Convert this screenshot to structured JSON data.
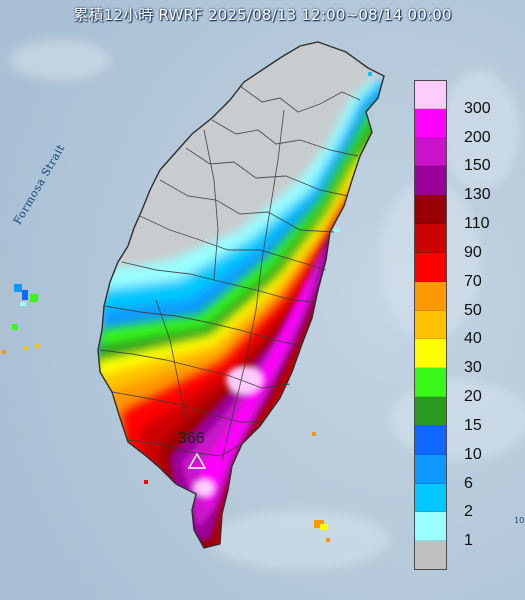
{
  "title": "累積12小時 RWRF 2025/08/13 12:00~08/14 00:00",
  "strait_label": "Formosa Strait",
  "peak_value": "366",
  "edge_mark": "10",
  "colors": {
    "sea": "#b3c7d9",
    "land": "#c9ccce",
    "border": "#3a3a3a"
  },
  "legend": {
    "levels": [
      {
        "label": "300",
        "color": "#fecbfd"
      },
      {
        "label": "200",
        "color": "#fe02fd"
      },
      {
        "label": "150",
        "color": "#cb13cb"
      },
      {
        "label": "130",
        "color": "#9a0099"
      },
      {
        "label": "110",
        "color": "#990003"
      },
      {
        "label": "90",
        "color": "#cc0200"
      },
      {
        "label": "70",
        "color": "#fe0000"
      },
      {
        "label": "50",
        "color": "#fe9800"
      },
      {
        "label": "40",
        "color": "#fec300"
      },
      {
        "label": "30",
        "color": "#fefe00"
      },
      {
        "label": "20",
        "color": "#38f819"
      },
      {
        "label": "15",
        "color": "#2a9920"
      },
      {
        "label": "10",
        "color": "#0e67fe"
      },
      {
        "label": "6",
        "color": "#0e99fe"
      },
      {
        "label": "2",
        "color": "#00c8fe"
      },
      {
        "label": "1",
        "color": "#9afefe"
      },
      {
        "label": "",
        "color": "#c0c0c0"
      }
    ]
  }
}
